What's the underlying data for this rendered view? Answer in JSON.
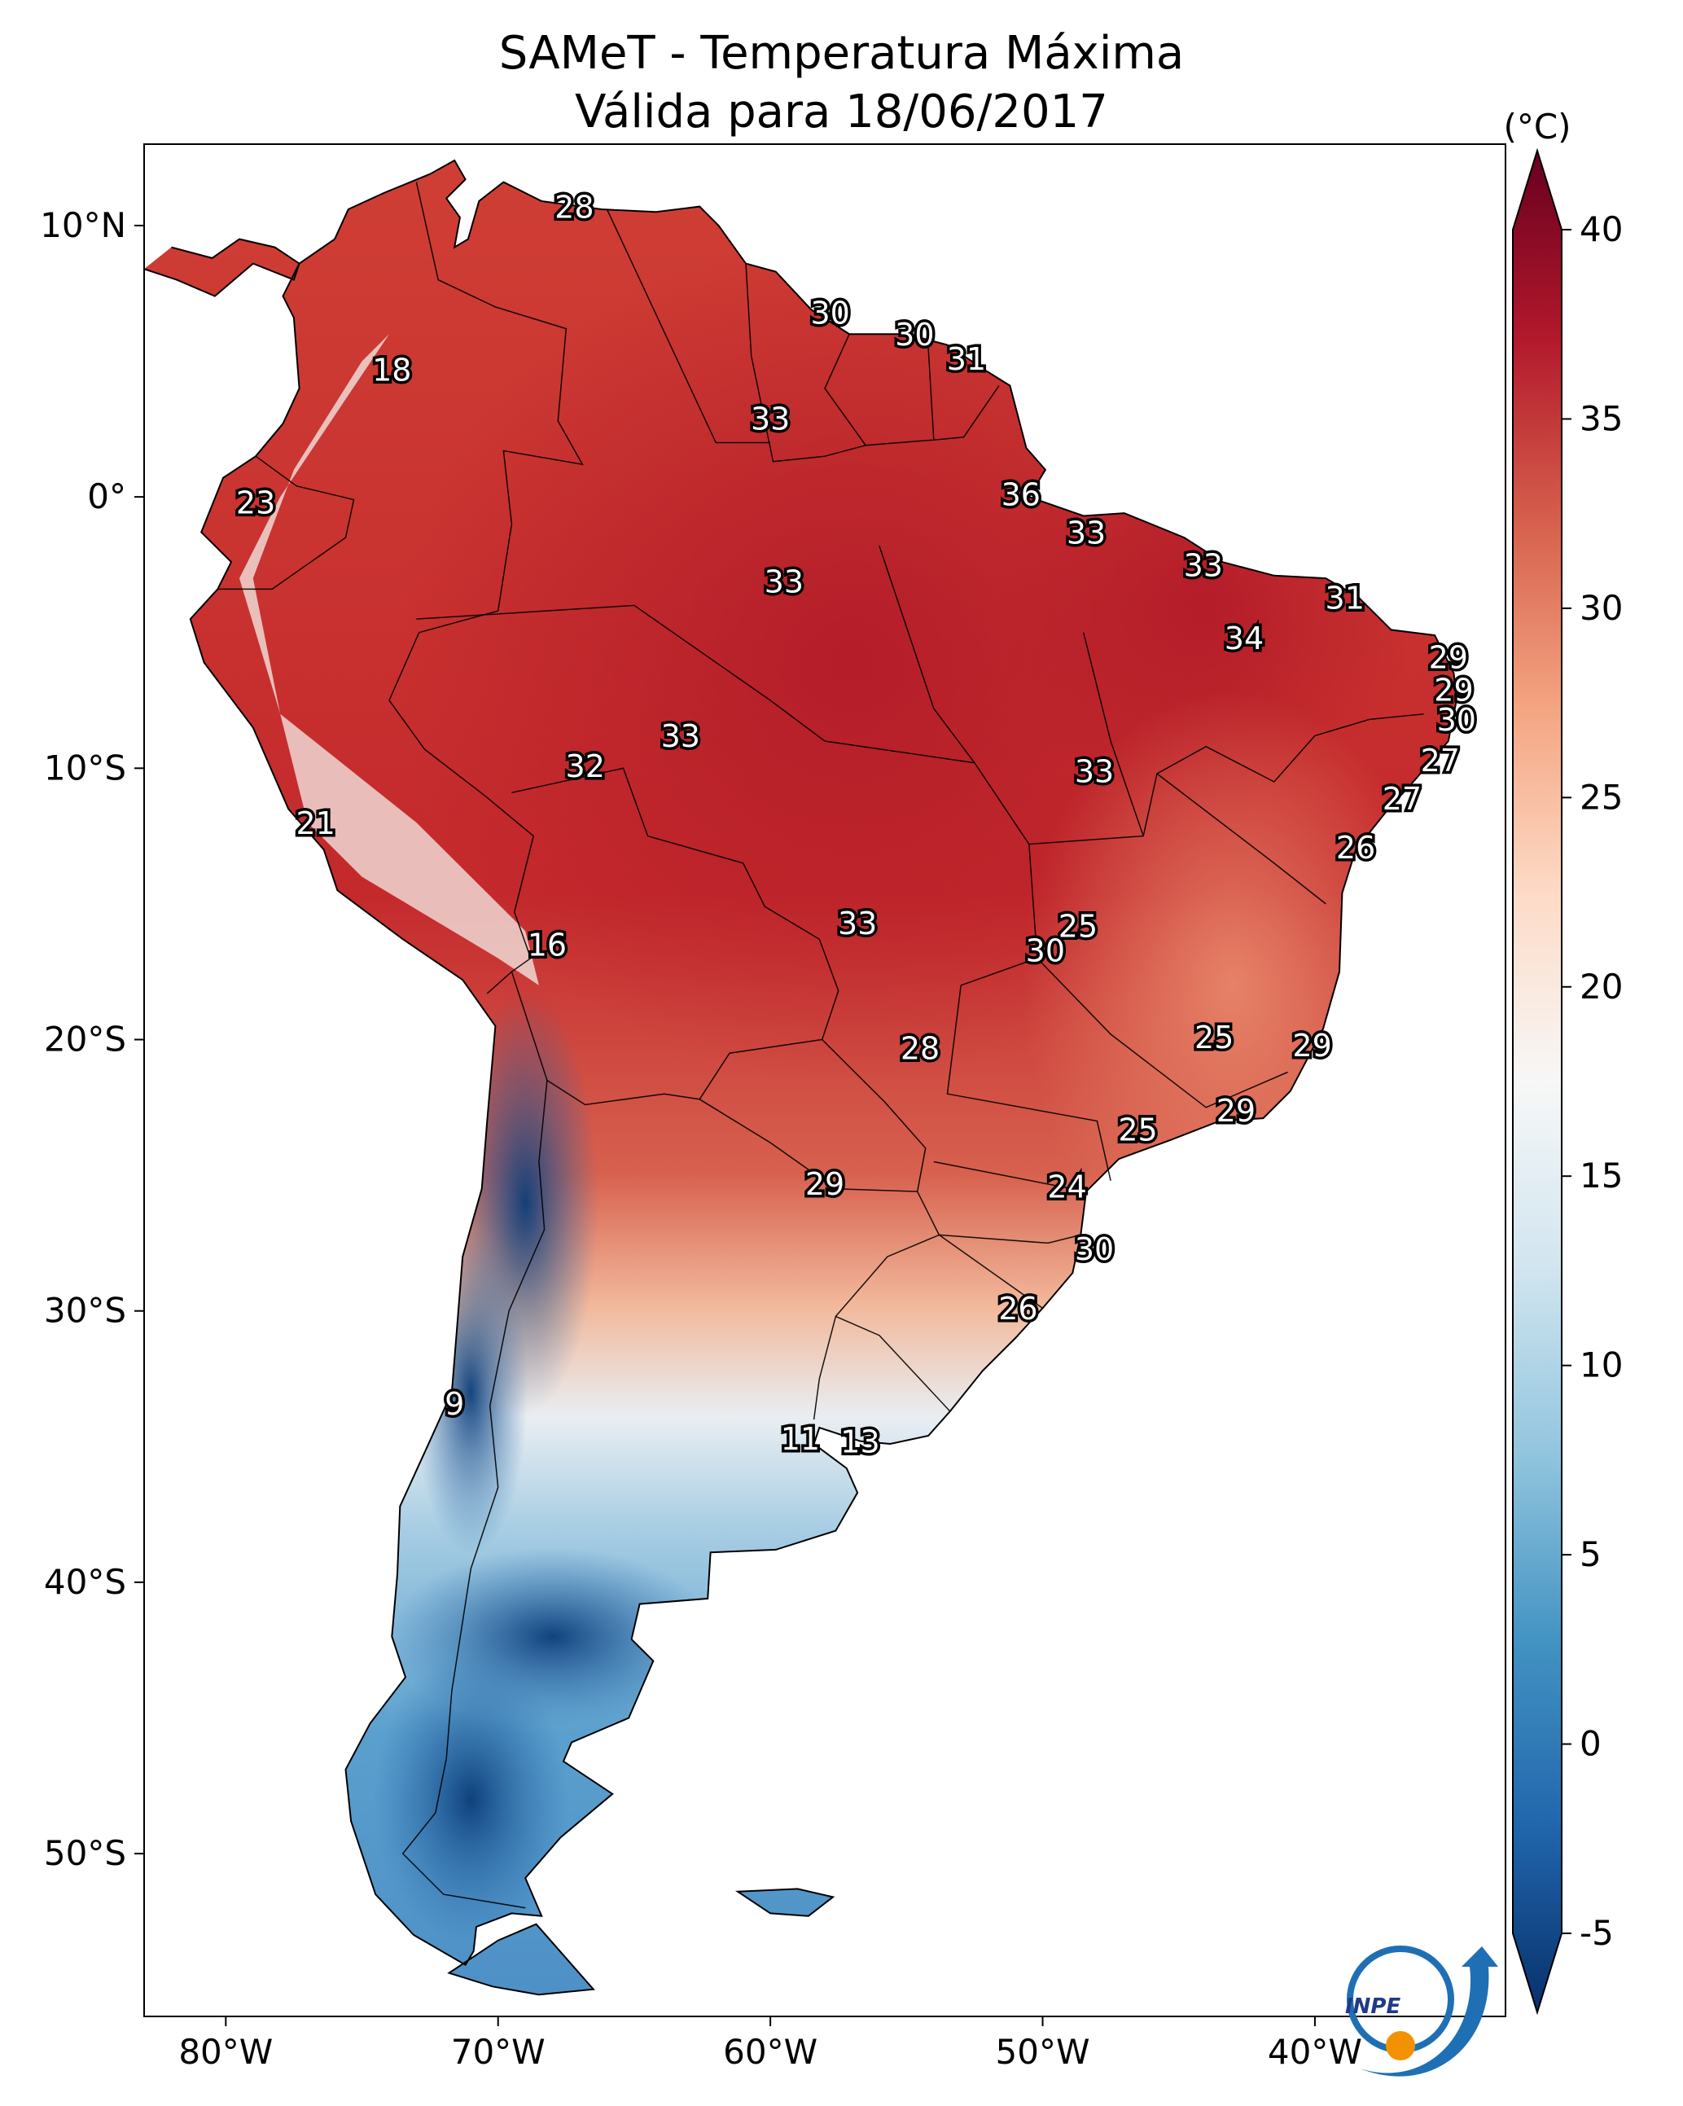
{
  "title": {
    "line1": "SAMeT - Temperatura Máxima",
    "line2": "Válida para 18/06/2017"
  },
  "map": {
    "lon_range": [
      -83,
      -33
    ],
    "lat_range": [
      -56,
      13
    ],
    "lon_ticks": [
      "80°W",
      "70°W",
      "60°W",
      "50°W",
      "40°W"
    ],
    "lat_ticks": [
      "10°N",
      "0°",
      "10°S",
      "20°S",
      "30°S",
      "40°S",
      "50°S"
    ],
    "temperature_labels": [
      {
        "text": "28",
        "lon": -67.2,
        "lat": 10.6
      },
      {
        "text": "18",
        "lon": -73.9,
        "lat": 4.6
      },
      {
        "text": "30",
        "lon": -57.8,
        "lat": 6.7
      },
      {
        "text": "30",
        "lon": -54.7,
        "lat": 5.9
      },
      {
        "text": "31",
        "lon": -52.8,
        "lat": 5.0
      },
      {
        "text": "33",
        "lon": -60.0,
        "lat": 2.8
      },
      {
        "text": "23",
        "lon": -78.9,
        "lat": -0.3
      },
      {
        "text": "36",
        "lon": -50.8,
        "lat": 0.0
      },
      {
        "text": "33",
        "lon": -48.4,
        "lat": -1.4
      },
      {
        "text": "33",
        "lon": -59.5,
        "lat": -3.2
      },
      {
        "text": "33",
        "lon": -44.1,
        "lat": -2.6
      },
      {
        "text": "31",
        "lon": -38.9,
        "lat": -3.8
      },
      {
        "text": "34",
        "lon": -42.6,
        "lat": -5.3
      },
      {
        "text": "29",
        "lon": -35.1,
        "lat": -6.0
      },
      {
        "text": "29",
        "lon": -34.9,
        "lat": -7.2
      },
      {
        "text": "30",
        "lon": -34.8,
        "lat": -8.3
      },
      {
        "text": "27",
        "lon": -35.4,
        "lat": -9.8
      },
      {
        "text": "27",
        "lon": -36.8,
        "lat": -11.2
      },
      {
        "text": "33",
        "lon": -63.3,
        "lat": -8.9
      },
      {
        "text": "32",
        "lon": -66.8,
        "lat": -10.0
      },
      {
        "text": "33",
        "lon": -48.1,
        "lat": -10.2
      },
      {
        "text": "26",
        "lon": -38.5,
        "lat": -13.0
      },
      {
        "text": "21",
        "lon": -76.7,
        "lat": -12.1
      },
      {
        "text": "33",
        "lon": -56.8,
        "lat": -15.8
      },
      {
        "text": "25",
        "lon": -48.7,
        "lat": -15.9
      },
      {
        "text": "16",
        "lon": -68.2,
        "lat": -16.6
      },
      {
        "text": "30",
        "lon": -49.9,
        "lat": -16.8
      },
      {
        "text": "25",
        "lon": -43.7,
        "lat": -20.0
      },
      {
        "text": "29",
        "lon": -40.1,
        "lat": -20.3
      },
      {
        "text": "28",
        "lon": -54.5,
        "lat": -20.4
      },
      {
        "text": "29",
        "lon": -42.9,
        "lat": -22.7
      },
      {
        "text": "25",
        "lon": -46.5,
        "lat": -23.4
      },
      {
        "text": "29",
        "lon": -58.0,
        "lat": -25.4
      },
      {
        "text": "24",
        "lon": -49.1,
        "lat": -25.5
      },
      {
        "text": "30",
        "lon": -48.1,
        "lat": -27.8
      },
      {
        "text": "26",
        "lon": -50.9,
        "lat": -30.0
      },
      {
        "text": "9",
        "lon": -71.6,
        "lat": -33.5
      },
      {
        "text": "11",
        "lon": -58.9,
        "lat": -34.8
      },
      {
        "text": "13",
        "lon": -56.7,
        "lat": -34.9
      }
    ]
  },
  "colorbar": {
    "unit": "(°C)",
    "min": -5,
    "max": 40,
    "ticks": [
      "-5",
      "0",
      "5",
      "10",
      "15",
      "20",
      "25",
      "30",
      "35",
      "40"
    ],
    "colormap": [
      "#08306b",
      "#2166ac",
      "#4393c3",
      "#92c5de",
      "#d1e5f0",
      "#f7f7f7",
      "#fddbc7",
      "#f4a582",
      "#d6604d",
      "#b2182b",
      "#67001f"
    ]
  },
  "logo": {
    "text": "INPE"
  }
}
